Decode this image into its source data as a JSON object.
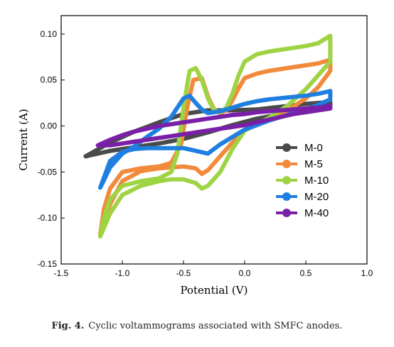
{
  "caption": {
    "label": "Fig. 4.",
    "text": "Cyclic voltammograms associated with SMFC anodes."
  },
  "chart_data": {
    "type": "line",
    "xlabel": "Potential (V)",
    "ylabel": "Current (A)",
    "xlim": [
      -1.5,
      1.0
    ],
    "ylim": [
      -0.15,
      0.12
    ],
    "xticks": [
      -1.5,
      -1.0,
      -0.5,
      0.0,
      0.5,
      1.0
    ],
    "xtick_labels": [
      "-1.5",
      "-1.0",
      "-0.5",
      "0.0",
      "0.5",
      "1.0"
    ],
    "yticks": [
      -0.15,
      -0.1,
      -0.05,
      0.0,
      0.05,
      0.1
    ],
    "ytick_labels": [
      "-0.15",
      "-0.10",
      "-0.05",
      "0.00",
      "0.05",
      "0.10"
    ],
    "grid": false,
    "legend_position": "right",
    "series": [
      {
        "name": "M-0",
        "color": "#4a4a4a",
        "x": [
          -1.3,
          -1.1,
          -0.9,
          -0.7,
          -0.5,
          -0.3,
          -0.1,
          0.1,
          0.3,
          0.5,
          0.7,
          0.7,
          0.5,
          0.3,
          0.1,
          -0.1,
          -0.3,
          -0.5,
          -0.7,
          -0.9,
          -1.1,
          -1.3
        ],
        "y": [
          -0.033,
          -0.018,
          -0.006,
          0.004,
          0.013,
          0.017,
          0.017,
          0.018,
          0.021,
          0.024,
          0.026,
          0.021,
          0.017,
          0.013,
          0.008,
          0.001,
          -0.007,
          -0.014,
          -0.019,
          -0.023,
          -0.027,
          -0.033
        ]
      },
      {
        "name": "M-5",
        "color": "#f28a3c",
        "x": [
          -1.18,
          -1.15,
          -1.1,
          -1.0,
          -0.85,
          -0.7,
          -0.6,
          -0.52,
          -0.47,
          -0.42,
          -0.35,
          -0.3,
          -0.25,
          -0.2,
          -0.15,
          -0.1,
          -0.05,
          0.0,
          0.1,
          0.2,
          0.35,
          0.5,
          0.6,
          0.7,
          0.7,
          0.6,
          0.5,
          0.35,
          0.2,
          0.1,
          0.0,
          -0.1,
          -0.2,
          -0.3,
          -0.35,
          -0.4,
          -0.5,
          -0.6,
          -0.7,
          -0.85,
          -1.0,
          -1.1,
          -1.18
        ],
        "y": [
          -0.118,
          -0.09,
          -0.068,
          -0.05,
          -0.046,
          -0.044,
          -0.04,
          -0.02,
          0.02,
          0.05,
          0.052,
          0.032,
          0.018,
          0.014,
          0.017,
          0.028,
          0.041,
          0.052,
          0.057,
          0.06,
          0.063,
          0.066,
          0.068,
          0.072,
          0.06,
          0.042,
          0.03,
          0.017,
          0.008,
          0.002,
          -0.005,
          -0.018,
          -0.033,
          -0.048,
          -0.052,
          -0.046,
          -0.044,
          -0.045,
          -0.046,
          -0.049,
          -0.06,
          -0.085,
          -0.118
        ]
      },
      {
        "name": "M-10",
        "color": "#9ed444",
        "x": [
          -1.18,
          -1.15,
          -1.1,
          -1.0,
          -0.85,
          -0.7,
          -0.6,
          -0.55,
          -0.5,
          -0.45,
          -0.4,
          -0.35,
          -0.3,
          -0.25,
          -0.2,
          -0.15,
          -0.1,
          -0.05,
          0.0,
          0.1,
          0.2,
          0.35,
          0.5,
          0.6,
          0.7,
          0.7,
          0.6,
          0.5,
          0.35,
          0.2,
          0.1,
          0.0,
          -0.1,
          -0.2,
          -0.3,
          -0.35,
          -0.4,
          -0.5,
          -0.6,
          -0.7,
          -0.85,
          -1.0,
          -1.1,
          -1.18
        ],
        "y": [
          -0.12,
          -0.1,
          -0.08,
          -0.065,
          -0.06,
          -0.057,
          -0.05,
          -0.03,
          0.02,
          0.06,
          0.063,
          0.05,
          0.03,
          0.017,
          0.015,
          0.02,
          0.035,
          0.055,
          0.07,
          0.078,
          0.081,
          0.084,
          0.087,
          0.09,
          0.098,
          0.07,
          0.055,
          0.04,
          0.022,
          0.009,
          0.002,
          -0.005,
          -0.025,
          -0.05,
          -0.065,
          -0.068,
          -0.062,
          -0.058,
          -0.058,
          -0.06,
          -0.065,
          -0.075,
          -0.095,
          -0.12
        ]
      },
      {
        "name": "M-20",
        "color": "#1f7fe0",
        "x": [
          -1.18,
          -1.1,
          -1.0,
          -0.9,
          -0.8,
          -0.7,
          -0.6,
          -0.5,
          -0.45,
          -0.4,
          -0.35,
          -0.3,
          -0.2,
          -0.1,
          0.0,
          0.1,
          0.2,
          0.35,
          0.5,
          0.6,
          0.7,
          0.7,
          0.6,
          0.5,
          0.35,
          0.2,
          0.1,
          0.0,
          -0.1,
          -0.2,
          -0.3,
          -0.4,
          -0.5,
          -0.6,
          -0.7,
          -0.8,
          -0.9,
          -1.0,
          -1.1,
          -1.18
        ],
        "y": [
          -0.067,
          -0.045,
          -0.03,
          -0.022,
          -0.012,
          -0.003,
          0.01,
          0.03,
          0.033,
          0.025,
          0.018,
          0.014,
          0.016,
          0.02,
          0.024,
          0.027,
          0.029,
          0.031,
          0.033,
          0.035,
          0.038,
          0.029,
          0.023,
          0.018,
          0.012,
          0.006,
          0.001,
          -0.004,
          -0.012,
          -0.02,
          -0.03,
          -0.027,
          -0.024,
          -0.024,
          -0.024,
          -0.024,
          -0.025,
          -0.028,
          -0.038,
          -0.067
        ]
      },
      {
        "name": "M-40",
        "color": "#7a1fa8",
        "x": [
          -1.2,
          -1.1,
          -1.0,
          -0.9,
          -0.8,
          -0.7,
          -0.6,
          -0.5,
          -0.4,
          -0.3,
          -0.2,
          -0.1,
          0.0,
          0.1,
          0.2,
          0.3,
          0.4,
          0.5,
          0.6,
          0.7,
          0.7,
          0.6,
          0.5,
          0.4,
          0.3,
          0.2,
          0.1,
          0.0,
          -0.1,
          -0.2,
          -0.3,
          -0.4,
          -0.5,
          -0.6,
          -0.7,
          -0.8,
          -0.9,
          -1.0,
          -1.1,
          -1.2
        ],
        "y": [
          -0.021,
          -0.015,
          -0.01,
          -0.006,
          -0.003,
          0.0,
          0.002,
          0.004,
          0.006,
          0.008,
          0.01,
          0.012,
          0.013,
          0.015,
          0.016,
          0.017,
          0.018,
          0.019,
          0.02,
          0.022,
          0.019,
          0.017,
          0.015,
          0.013,
          0.01,
          0.007,
          0.004,
          0.001,
          -0.001,
          -0.003,
          -0.005,
          -0.007,
          -0.009,
          -0.011,
          -0.013,
          -0.015,
          -0.017,
          -0.019,
          -0.021,
          -0.021
        ]
      }
    ]
  }
}
